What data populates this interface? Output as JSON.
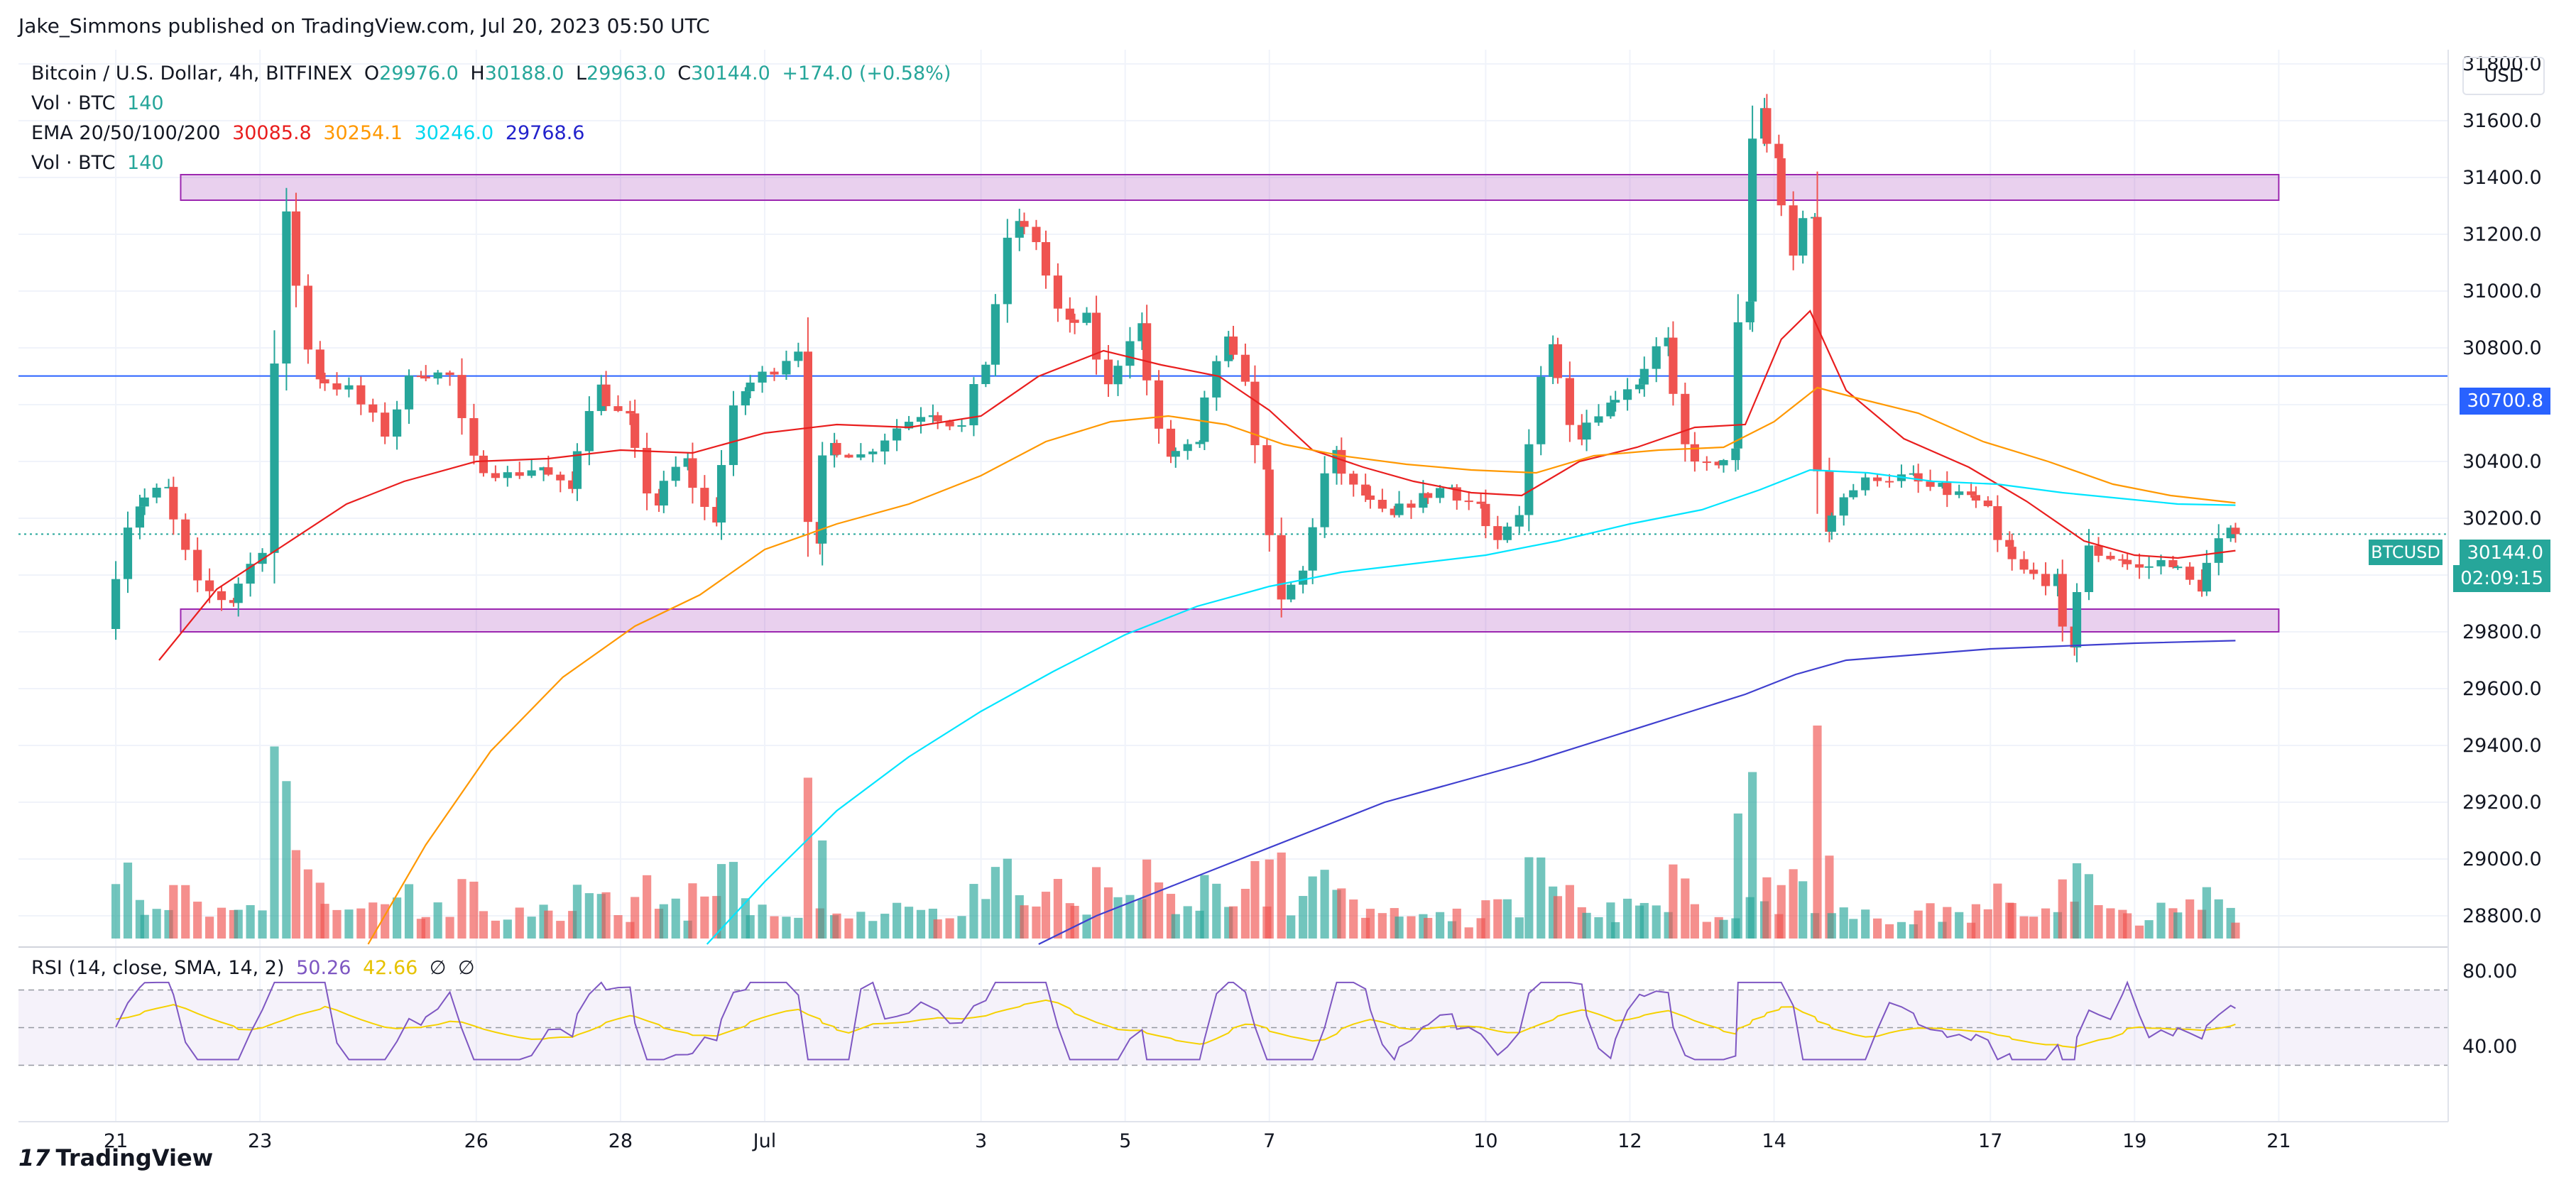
{
  "header": {
    "publisher": "Jake_Simmons published on TradingView.com, Jul 20, 2023 05:50 UTC"
  },
  "legend": {
    "symbol": "Bitcoin / U.S. Dollar, 4h, BITFINEX",
    "o_label": "O",
    "o": "29976.0",
    "h_label": "H",
    "h": "30188.0",
    "l_label": "L",
    "l": "29963.0",
    "c_label": "C",
    "c": "30144.0",
    "change": "+174.0 (+0.58%)",
    "vol1_label": "Vol · BTC",
    "vol1": "140",
    "ema_label": "EMA 20/50/100/200",
    "ema20": "30085.8",
    "ema50": "30254.1",
    "ema100": "30246.0",
    "ema200": "29768.6",
    "vol2_label": "Vol · BTC",
    "vol2": "140"
  },
  "currency_button": "USD",
  "price_tags": {
    "level": "30700.8",
    "symbol": "BTCUSD",
    "price": "30144.0",
    "countdown": "02:09:15"
  },
  "rsi": {
    "label": "RSI (14, close, SMA, 14, 2)",
    "value": "50.26",
    "sma": "42.66",
    "null1": "∅",
    "null2": "∅"
  },
  "footer": {
    "brand": "TradingView",
    "logo_text": "17"
  },
  "colors": {
    "up": "#26a69a",
    "down": "#ef5350",
    "ema20": "#e91e1e",
    "ema50": "#ff9800",
    "ema100": "#00e5ff",
    "ema200": "#3f3fcf",
    "zone": "#9c27b0",
    "hline": "#2962ff",
    "rsi": "#7e57c2",
    "rsi_sma": "#f5d100"
  },
  "chart_data": {
    "type": "candlestick",
    "symbol": "Bitcoin / U.S. Dollar, 4h, BITFINEX",
    "ylim": [
      28700,
      31850
    ],
    "y_ticks": [
      "28800.0",
      "29000.0",
      "29200.0",
      "29400.0",
      "29600.0",
      "29800.0",
      "30000.0",
      "30200.0",
      "30400.0",
      "30600.0",
      "30800.0",
      "31000.0",
      "31200.0",
      "31400.0",
      "31600.0",
      "31800.0"
    ],
    "x_ticks": [
      {
        "label": "21",
        "day": 21
      },
      {
        "label": "23",
        "day": 23
      },
      {
        "label": "26",
        "day": 26
      },
      {
        "label": "28",
        "day": 28
      },
      {
        "label": "Jul",
        "day": 30
      },
      {
        "label": "3",
        "day": 33
      },
      {
        "label": "5",
        "day": 35
      },
      {
        "label": "7",
        "day": 37
      },
      {
        "label": "10",
        "day": 40
      },
      {
        "label": "12",
        "day": 42
      },
      {
        "label": "14",
        "day": 44
      },
      {
        "label": "17",
        "day": 47
      },
      {
        "label": "19",
        "day": 49
      },
      {
        "label": "21",
        "day": 51
      }
    ],
    "x_range_days": [
      19.65,
      53.35
    ],
    "zones": [
      {
        "y1": 31320,
        "y2": 31410,
        "day_start": 21.9,
        "day_end": 51
      },
      {
        "y1": 29800,
        "y2": 29880,
        "day_start": 21.9,
        "day_end": 51
      }
    ],
    "hline": 30700.8,
    "last_price": 30144.0,
    "anchors": [
      {
        "day": 21.0,
        "price": 29840
      },
      {
        "day": 21.4,
        "price": 30250
      },
      {
        "day": 21.8,
        "price": 30300
      },
      {
        "day": 22.3,
        "price": 29960
      },
      {
        "day": 22.7,
        "price": 29910
      },
      {
        "day": 23.2,
        "price": 30100
      },
      {
        "day": 23.5,
        "price": 31260
      },
      {
        "day": 23.9,
        "price": 30700
      },
      {
        "day": 24.4,
        "price": 30650
      },
      {
        "day": 24.9,
        "price": 30500
      },
      {
        "day": 25.3,
        "price": 30720
      },
      {
        "day": 25.8,
        "price": 30700
      },
      {
        "day": 26.1,
        "price": 30400
      },
      {
        "day": 26.6,
        "price": 30350
      },
      {
        "day": 27.0,
        "price": 30380
      },
      {
        "day": 27.4,
        "price": 30300
      },
      {
        "day": 27.8,
        "price": 30660
      },
      {
        "day": 28.2,
        "price": 30550
      },
      {
        "day": 28.6,
        "price": 30250
      },
      {
        "day": 29.0,
        "price": 30400
      },
      {
        "day": 29.4,
        "price": 30200
      },
      {
        "day": 29.8,
        "price": 30650
      },
      {
        "day": 30.3,
        "price": 30730
      },
      {
        "day": 30.6,
        "price": 30800
      },
      {
        "day": 30.8,
        "price": 30090
      },
      {
        "day": 31.0,
        "price": 30460
      },
      {
        "day": 31.5,
        "price": 30420
      },
      {
        "day": 32.0,
        "price": 30520
      },
      {
        "day": 32.4,
        "price": 30580
      },
      {
        "day": 32.9,
        "price": 30520
      },
      {
        "day": 33.2,
        "price": 30750
      },
      {
        "day": 33.6,
        "price": 31250
      },
      {
        "day": 33.9,
        "price": 31180
      },
      {
        "day": 34.3,
        "price": 30880
      },
      {
        "day": 34.6,
        "price": 30900
      },
      {
        "day": 34.9,
        "price": 30660
      },
      {
        "day": 35.3,
        "price": 30880
      },
      {
        "day": 35.7,
        "price": 30420
      },
      {
        "day": 36.1,
        "price": 30450
      },
      {
        "day": 36.5,
        "price": 30820
      },
      {
        "day": 36.8,
        "price": 30700
      },
      {
        "day": 37.0,
        "price": 30390
      },
      {
        "day": 37.3,
        "price": 29900
      },
      {
        "day": 37.6,
        "price": 30010
      },
      {
        "day": 38.0,
        "price": 30420
      },
      {
        "day": 38.4,
        "price": 30280
      },
      {
        "day": 38.8,
        "price": 30200
      },
      {
        "day": 39.2,
        "price": 30270
      },
      {
        "day": 39.6,
        "price": 30310
      },
      {
        "day": 40.0,
        "price": 30250
      },
      {
        "day": 40.3,
        "price": 30100
      },
      {
        "day": 40.6,
        "price": 30200
      },
      {
        "day": 41.0,
        "price": 30820
      },
      {
        "day": 41.4,
        "price": 30500
      },
      {
        "day": 41.8,
        "price": 30600
      },
      {
        "day": 42.2,
        "price": 30680
      },
      {
        "day": 42.6,
        "price": 30820
      },
      {
        "day": 42.9,
        "price": 30450
      },
      {
        "day": 43.3,
        "price": 30370
      },
      {
        "day": 43.5,
        "price": 30430
      },
      {
        "day": 43.7,
        "price": 30960
      },
      {
        "day": 43.9,
        "price": 31650
      },
      {
        "day": 44.1,
        "price": 31480
      },
      {
        "day": 44.4,
        "price": 31120
      },
      {
        "day": 44.6,
        "price": 31280
      },
      {
        "day": 44.8,
        "price": 30160
      },
      {
        "day": 45.1,
        "price": 30280
      },
      {
        "day": 45.6,
        "price": 30350
      },
      {
        "day": 46.0,
        "price": 30340
      },
      {
        "day": 46.4,
        "price": 30300
      },
      {
        "day": 46.8,
        "price": 30280
      },
      {
        "day": 47.1,
        "price": 30220
      },
      {
        "day": 47.3,
        "price": 30090
      },
      {
        "day": 47.6,
        "price": 30010
      },
      {
        "day": 48.0,
        "price": 29980
      },
      {
        "day": 48.2,
        "price": 29760
      },
      {
        "day": 48.5,
        "price": 30090
      },
      {
        "day": 48.9,
        "price": 30060
      },
      {
        "day": 49.2,
        "price": 30020
      },
      {
        "day": 49.6,
        "price": 30050
      },
      {
        "day": 50.0,
        "price": 29960
      },
      {
        "day": 50.4,
        "price": 30144
      }
    ],
    "ema20": [
      [
        21.6,
        29700
      ],
      [
        22.4,
        29950
      ],
      [
        23.3,
        30100
      ],
      [
        24.2,
        30250
      ],
      [
        25.0,
        30330
      ],
      [
        26.0,
        30400
      ],
      [
        27.0,
        30410
      ],
      [
        28.0,
        30440
      ],
      [
        29.0,
        30430
      ],
      [
        30.0,
        30500
      ],
      [
        31.0,
        30530
      ],
      [
        32.0,
        30520
      ],
      [
        33.0,
        30560
      ],
      [
        33.8,
        30700
      ],
      [
        34.7,
        30790
      ],
      [
        35.5,
        30740
      ],
      [
        36.3,
        30700
      ],
      [
        37.0,
        30580
      ],
      [
        37.6,
        30440
      ],
      [
        38.3,
        30380
      ],
      [
        39.0,
        30330
      ],
      [
        39.8,
        30290
      ],
      [
        40.5,
        30280
      ],
      [
        41.3,
        30400
      ],
      [
        42.1,
        30450
      ],
      [
        42.9,
        30520
      ],
      [
        43.6,
        30530
      ],
      [
        44.1,
        30830
      ],
      [
        44.5,
        30930
      ],
      [
        45.0,
        30650
      ],
      [
        45.8,
        30480
      ],
      [
        46.7,
        30380
      ],
      [
        47.5,
        30260
      ],
      [
        48.3,
        30120
      ],
      [
        49.0,
        30070
      ],
      [
        49.6,
        30060
      ],
      [
        50.4,
        30086
      ]
    ],
    "ema50": [
      [
        24.5,
        28700
      ],
      [
        25.3,
        29050
      ],
      [
        26.2,
        29380
      ],
      [
        27.2,
        29640
      ],
      [
        28.2,
        29820
      ],
      [
        29.1,
        29930
      ],
      [
        30.0,
        30090
      ],
      [
        31.0,
        30180
      ],
      [
        32.0,
        30250
      ],
      [
        33.0,
        30350
      ],
      [
        33.9,
        30470
      ],
      [
        34.8,
        30540
      ],
      [
        35.6,
        30560
      ],
      [
        36.4,
        30530
      ],
      [
        37.2,
        30460
      ],
      [
        38.0,
        30420
      ],
      [
        38.9,
        30390
      ],
      [
        39.8,
        30370
      ],
      [
        40.7,
        30360
      ],
      [
        41.5,
        30420
      ],
      [
        42.4,
        30440
      ],
      [
        43.3,
        30450
      ],
      [
        44.0,
        30540
      ],
      [
        44.6,
        30660
      ],
      [
        45.2,
        30620
      ],
      [
        46.0,
        30570
      ],
      [
        46.9,
        30470
      ],
      [
        47.8,
        30400
      ],
      [
        48.7,
        30320
      ],
      [
        49.5,
        30280
      ],
      [
        50.4,
        30254
      ]
    ],
    "ema100": [
      [
        29.2,
        28700
      ],
      [
        30.0,
        28920
      ],
      [
        31.0,
        29170
      ],
      [
        32.0,
        29360
      ],
      [
        33.0,
        29520
      ],
      [
        34.0,
        29660
      ],
      [
        35.0,
        29790
      ],
      [
        36.0,
        29890
      ],
      [
        37.0,
        29960
      ],
      [
        38.0,
        30010
      ],
      [
        39.0,
        30040
      ],
      [
        40.0,
        30070
      ],
      [
        41.0,
        30120
      ],
      [
        42.0,
        30180
      ],
      [
        43.0,
        30230
      ],
      [
        43.8,
        30300
      ],
      [
        44.5,
        30370
      ],
      [
        45.3,
        30360
      ],
      [
        46.2,
        30330
      ],
      [
        47.1,
        30320
      ],
      [
        48.0,
        30290
      ],
      [
        48.8,
        30270
      ],
      [
        49.6,
        30250
      ],
      [
        50.4,
        30246
      ]
    ],
    "ema200": [
      [
        33.8,
        28700
      ],
      [
        34.6,
        28800
      ],
      [
        35.6,
        28900
      ],
      [
        36.6,
        29000
      ],
      [
        37.6,
        29100
      ],
      [
        38.6,
        29200
      ],
      [
        39.6,
        29270
      ],
      [
        40.6,
        29340
      ],
      [
        41.6,
        29420
      ],
      [
        42.6,
        29500
      ],
      [
        43.6,
        29580
      ],
      [
        44.3,
        29650
      ],
      [
        45.0,
        29700
      ],
      [
        46.0,
        29720
      ],
      [
        47.0,
        29740
      ],
      [
        48.0,
        29750
      ],
      [
        49.0,
        29760
      ],
      [
        50.4,
        29769
      ]
    ]
  }
}
